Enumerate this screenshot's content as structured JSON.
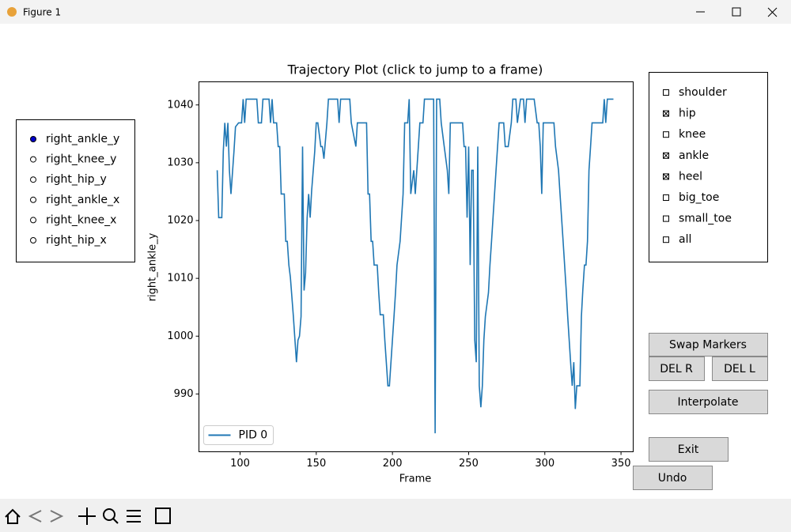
{
  "window": {
    "title": "Figure 1"
  },
  "radio": {
    "options": [
      "right_ankle_y",
      "right_knee_y",
      "right_hip_y",
      "right_ankle_x",
      "right_knee_x",
      "right_hip_x"
    ],
    "selected": 0
  },
  "checkboxes": [
    {
      "label": "shoulder",
      "checked": false
    },
    {
      "label": "hip",
      "checked": true
    },
    {
      "label": "knee",
      "checked": false
    },
    {
      "label": "ankle",
      "checked": true
    },
    {
      "label": "heel",
      "checked": true
    },
    {
      "label": "big_toe",
      "checked": false
    },
    {
      "label": "small_toe",
      "checked": false
    },
    {
      "label": "all",
      "checked": false
    }
  ],
  "buttons": [
    "Swap Markers",
    "DEL R",
    "DEL L",
    "Interpolate",
    "Exit",
    "Undo"
  ],
  "chart_data": {
    "type": "line",
    "title": "Trajectory Plot (click to jump to a frame)",
    "x_label": "Frame",
    "y_label": "right_ankle_y",
    "x": [
      85,
      86,
      88,
      89,
      90,
      91,
      92,
      93,
      94,
      96,
      97,
      99,
      101,
      102,
      103,
      104,
      111,
      112,
      114,
      115,
      119,
      120,
      121,
      122,
      124,
      125,
      126,
      127,
      129,
      130,
      131,
      132,
      133,
      135,
      136,
      137,
      138,
      139,
      140,
      141,
      142,
      143,
      144,
      145,
      146,
      147,
      149,
      150,
      151,
      153,
      154,
      155,
      157,
      158,
      164,
      165,
      166,
      172,
      173,
      176,
      177,
      179,
      183,
      184,
      185,
      186,
      187,
      188,
      190,
      191,
      192,
      194,
      195,
      197,
      198,
      200,
      201,
      202,
      203,
      205,
      206,
      207,
      208,
      210,
      211,
      212,
      214,
      215,
      217,
      218,
      220,
      221,
      227,
      228,
      229,
      231,
      232,
      234,
      236,
      237,
      238,
      240,
      246,
      247,
      248,
      249,
      250,
      251,
      252,
      253,
      254,
      255,
      256,
      257,
      258,
      259,
      260,
      261,
      263,
      264,
      265,
      266,
      268,
      270,
      273,
      274,
      276,
      278,
      279,
      281,
      282,
      284,
      286,
      287,
      288,
      293,
      295,
      296,
      297,
      298,
      299,
      301,
      306,
      307,
      309,
      310,
      312,
      313,
      314,
      315,
      316,
      317,
      318,
      319,
      320,
      321,
      323,
      324,
      325,
      326,
      327,
      328,
      329,
      330,
      331,
      335,
      338,
      339,
      340,
      341,
      342,
      345
    ],
    "series": [
      {
        "name": "PID 0",
        "color": "#1f77b4",
        "values": [
          1028.7,
          1020.5,
          1020.5,
          1032,
          1036.9,
          1032.8,
          1036.9,
          1028.7,
          1024.6,
          1032,
          1036.2,
          1036.9,
          1036.9,
          1041,
          1036.9,
          1041,
          1041,
          1036.9,
          1036.9,
          1041,
          1041,
          1036.9,
          1041,
          1036.9,
          1036.9,
          1032.8,
          1032.8,
          1024.6,
          1024.6,
          1016.4,
          1016.4,
          1012.3,
          1010.2,
          1003.4,
          999.3,
          995.5,
          999.3,
          1000,
          1003.4,
          1032.8,
          1007.9,
          1010.9,
          1020.5,
          1024.6,
          1020.5,
          1025.2,
          1032,
          1036.9,
          1036.9,
          1032.8,
          1032.8,
          1030.7,
          1036.9,
          1041,
          1041,
          1036.9,
          1041,
          1041,
          1036.9,
          1032.8,
          1036.9,
          1036.9,
          1036.9,
          1024.6,
          1024.6,
          1016.4,
          1016.4,
          1012.3,
          1012.3,
          1007.5,
          1003.7,
          1003.7,
          999.3,
          991.4,
          991.4,
          999.3,
          1003.4,
          1007.5,
          1012.3,
          1016.4,
          1020.5,
          1024.6,
          1036.9,
          1036.9,
          1041,
          1024.6,
          1028.7,
          1024.6,
          1032.8,
          1036.9,
          1036.9,
          1041,
          1041,
          983.2,
          1041,
          1041,
          1036.9,
          1032.8,
          1028.7,
          1024.6,
          1036.9,
          1036.9,
          1036.9,
          1032.8,
          1032.8,
          1020.5,
          1032.8,
          1012.3,
          1028.7,
          1028.7,
          999.3,
          995.5,
          1032.8,
          991.4,
          987.7,
          991.4,
          999.3,
          1003.4,
          1007.5,
          1012.3,
          1016.4,
          1020.5,
          1028.7,
          1036.9,
          1036.9,
          1032.8,
          1032.8,
          1036.9,
          1041,
          1041,
          1036.9,
          1041,
          1041,
          1036.9,
          1041,
          1041,
          1036.9,
          1036.9,
          1032.8,
          1024.6,
          1036.9,
          1036.9,
          1036.9,
          1032.8,
          1028.7,
          1024.6,
          1016.4,
          1012.3,
          1008.2,
          1003.4,
          999.3,
          995.2,
          991.4,
          995.5,
          987.4,
          991.4,
          991.4,
          1003.4,
          1008.2,
          1012.3,
          1012.3,
          1016.4,
          1028.7,
          1032.8,
          1036.9,
          1036.9,
          1036.9,
          1041,
          1036.9,
          1041,
          1041,
          1041
        ]
      }
    ],
    "xlim": [
      73,
      358
    ],
    "ylim": [
      980,
      1044
    ],
    "xticks": [
      100,
      150,
      200,
      250,
      300,
      350
    ],
    "yticks": [
      990,
      1000,
      1010,
      1020,
      1030,
      1040
    ],
    "legend": "lower left"
  }
}
